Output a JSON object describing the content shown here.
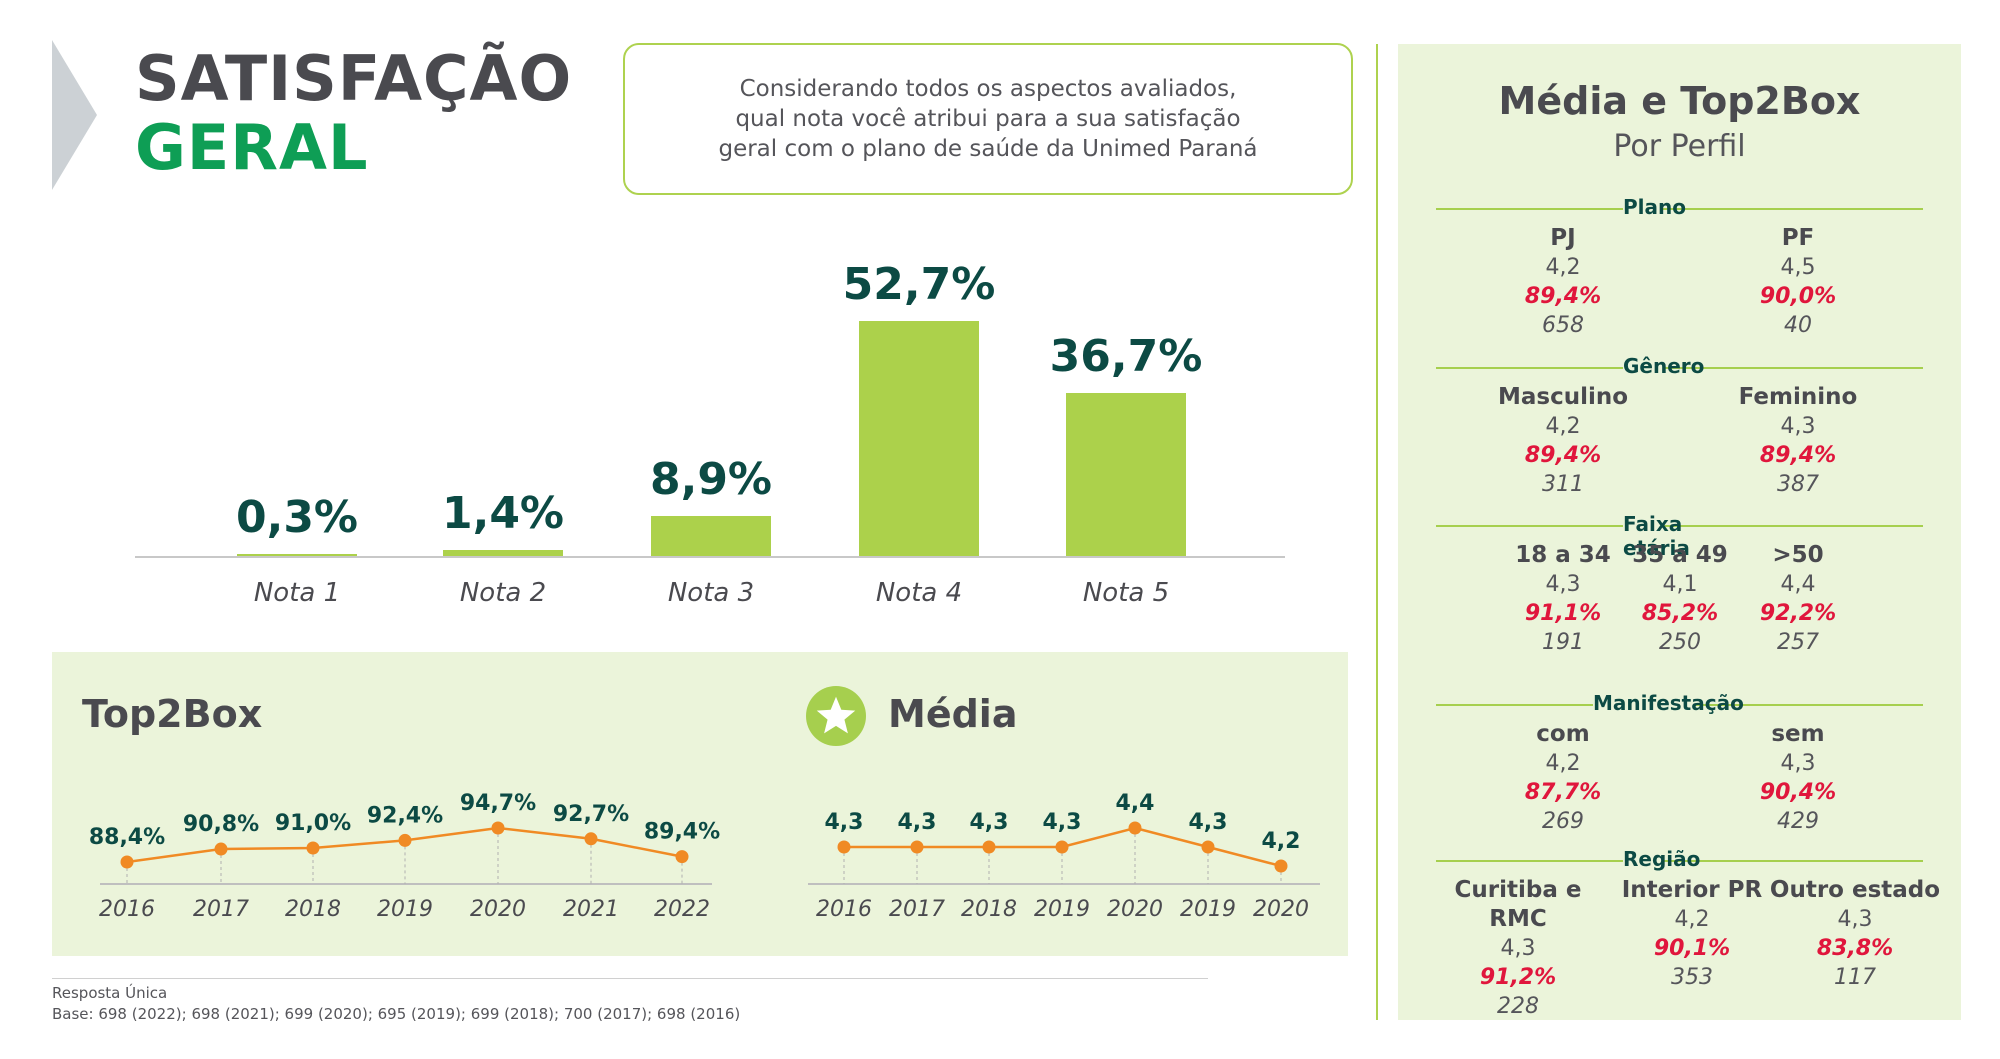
{
  "header": {
    "title_line1": "SATISFAÇÃO",
    "title_line2": "GERAL"
  },
  "question": "Considerando todos os aspectos avaliados, qual nota você atribui para a sua satisfação geral com o plano de saúde da Unimed Paraná",
  "chart_data": [
    {
      "type": "bar",
      "categories": [
        "Nota 1",
        "Nota 2",
        "Nota 3",
        "Nota 4",
        "Nota 5"
      ],
      "values": [
        0.3,
        1.4,
        8.9,
        52.7,
        36.7
      ],
      "value_labels": [
        "0,3%",
        "1,4%",
        "8,9%",
        "52,7%",
        "36,7%"
      ],
      "ylim": [
        0,
        55
      ],
      "color": "#acd14b"
    },
    {
      "type": "line",
      "title": "Top2Box",
      "x": [
        "2016",
        "2017",
        "2018",
        "2019",
        "2020",
        "2021",
        "2022"
      ],
      "values": [
        88.4,
        90.8,
        91.0,
        92.4,
        94.7,
        92.7,
        89.4
      ],
      "value_labels": [
        "88,4%",
        "90,8%",
        "91,0%",
        "92,4%",
        "94,7%",
        "92,7%",
        "89,4%"
      ],
      "color": "#f08a24"
    },
    {
      "type": "line",
      "title": "Média",
      "x": [
        "2016",
        "2017",
        "2018",
        "2019",
        "2020",
        "2019",
        "2020"
      ],
      "values": [
        4.3,
        4.3,
        4.3,
        4.3,
        4.4,
        4.3,
        4.2
      ],
      "value_labels": [
        "4,3",
        "4,3",
        "4,3",
        "4,3",
        "4,4",
        "4,3",
        "4,2"
      ],
      "color": "#f08a24"
    }
  ],
  "footnote": {
    "line1": "Resposta Única",
    "line2": "Base: 698 (2022); 698 (2021); 699 (2020); 695 (2019); 699 (2018); 700 (2017); 698 (2016)"
  },
  "profile": {
    "title": "Média e Top2Box",
    "subtitle": "Por Perfil",
    "sections": [
      {
        "label": "Plano",
        "cells": [
          {
            "name": "PJ",
            "media": "4,2",
            "top2box": "89,4%",
            "base": "658"
          },
          {
            "name": "PF",
            "media": "4,5",
            "top2box": "90,0%",
            "base": "40"
          }
        ]
      },
      {
        "label": "Gênero",
        "cells": [
          {
            "name": "Masculino",
            "media": "4,2",
            "top2box": "89,4%",
            "base": "311"
          },
          {
            "name": "Feminino",
            "media": "4,3",
            "top2box": "89,4%",
            "base": "387"
          }
        ]
      },
      {
        "label": "Faixa etária",
        "cells": [
          {
            "name": "18 a 34",
            "media": "4,3",
            "top2box": "91,1%",
            "base": "191"
          },
          {
            "name": "35 a 49",
            "media": "4,1",
            "top2box": "85,2%",
            "base": "250"
          },
          {
            "name": ">50",
            "media": "4,4",
            "top2box": "92,2%",
            "base": "257"
          }
        ]
      },
      {
        "label": "Manifestação",
        "cells": [
          {
            "name": "com",
            "media": "4,2",
            "top2box": "87,7%",
            "base": "269"
          },
          {
            "name": "sem",
            "media": "4,3",
            "top2box": "90,4%",
            "base": "429"
          }
        ]
      },
      {
        "label": "Região",
        "cells": [
          {
            "name": "Curitiba e RMC",
            "media": "4,3",
            "top2box": "91,2%",
            "base": "228"
          },
          {
            "name": "Interior PR",
            "media": "4,2",
            "top2box": "90,1%",
            "base": "353"
          },
          {
            "name": "Outro estado",
            "media": "4,3",
            "top2box": "83,8%",
            "base": "117"
          }
        ]
      }
    ]
  }
}
